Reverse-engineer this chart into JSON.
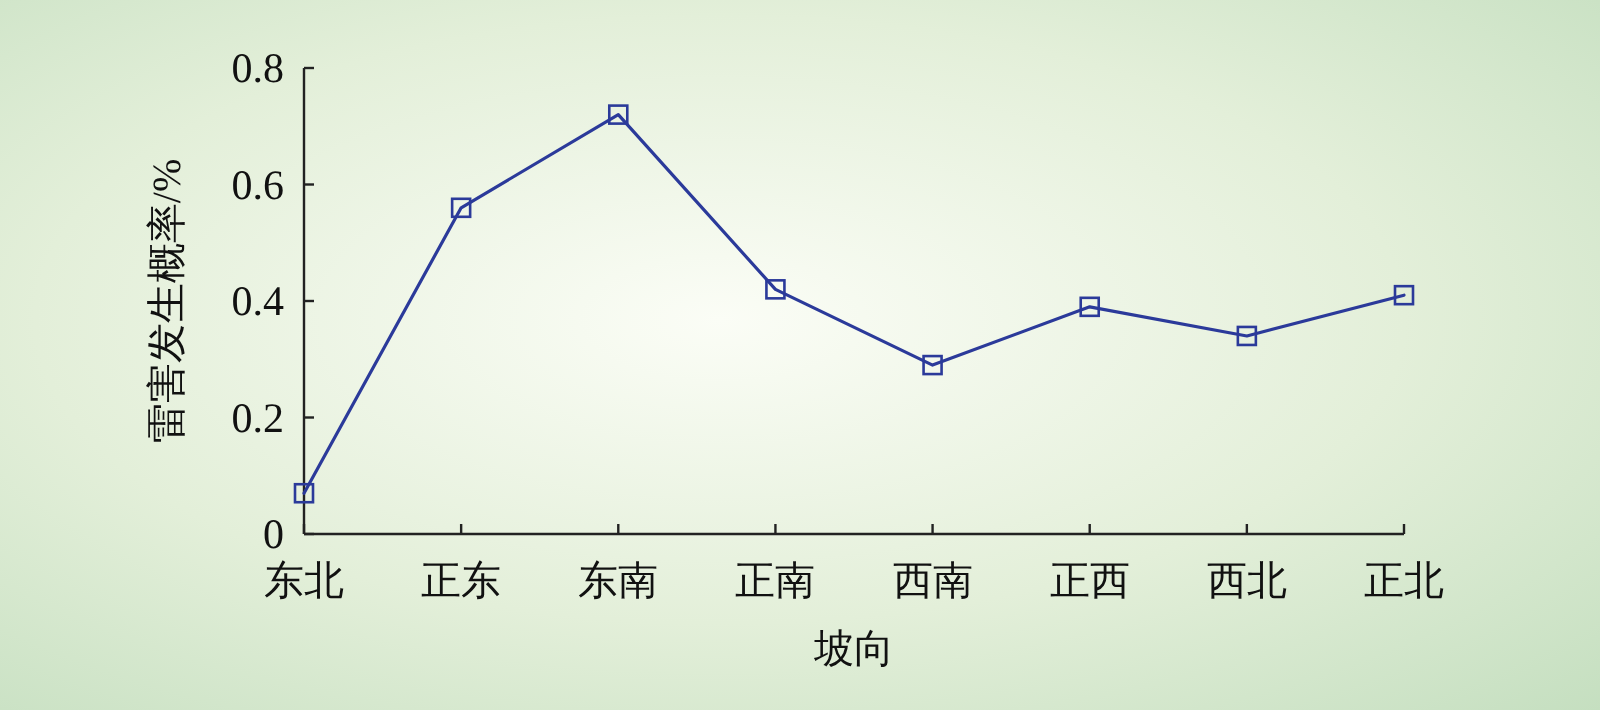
{
  "chart_data": {
    "type": "line",
    "xlabel": "坡向",
    "ylabel": "雷害发生概率/%",
    "categories": [
      "东北",
      "正东",
      "东南",
      "正南",
      "西南",
      "正西",
      "西北",
      "正北"
    ],
    "series": [
      {
        "color": "#2b3a9a",
        "values": [
          0.07,
          0.56,
          0.72,
          0.42,
          0.29,
          0.39,
          0.34,
          0.41
        ]
      }
    ],
    "ylim": [
      0,
      0.8
    ],
    "yticks": [
      0,
      0.2,
      0.4,
      0.6,
      0.8
    ],
    "marker": "square",
    "line_style": "solid"
  }
}
